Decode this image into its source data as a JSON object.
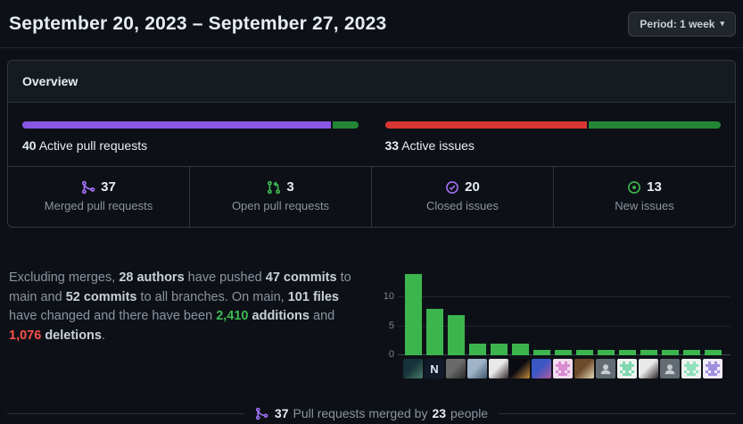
{
  "header": {
    "title": "September 20, 2023 – September 27, 2023",
    "period_button": {
      "label": "Period: 1 week",
      "caret": "▾"
    }
  },
  "overview": {
    "title": "Overview",
    "meters": [
      {
        "name": "active-pull-requests",
        "count": "40",
        "label": "Active pull requests",
        "segments": [
          {
            "color": "#8957e5",
            "pct": 92.5
          },
          {
            "color": "#238636",
            "pct": 7.5
          }
        ]
      },
      {
        "name": "active-issues",
        "count": "33",
        "label": "Active issues",
        "segments": [
          {
            "color": "#da3633",
            "pct": 60.6
          },
          {
            "color": "#238636",
            "pct": 39.4
          }
        ]
      }
    ],
    "stats": [
      {
        "icon": "git-merge-icon",
        "icon_color": "#a371f7",
        "count": "37",
        "label": "Merged pull requests"
      },
      {
        "icon": "git-pull-request-icon",
        "icon_color": "#3fb950",
        "count": "3",
        "label": "Open pull requests"
      },
      {
        "icon": "issue-closed-icon",
        "icon_color": "#a371f7",
        "count": "20",
        "label": "Closed issues"
      },
      {
        "icon": "issue-opened-icon",
        "icon_color": "#3fb950",
        "count": "13",
        "label": "New issues"
      }
    ]
  },
  "summary": {
    "segments": [
      {
        "text": "Excluding merges, ",
        "style": "normal"
      },
      {
        "text": "28 authors",
        "style": "bold"
      },
      {
        "text": " have pushed ",
        "style": "normal"
      },
      {
        "text": "47 commits",
        "style": "bold"
      },
      {
        "text": " to main and ",
        "style": "normal"
      },
      {
        "text": "52 commits",
        "style": "bold"
      },
      {
        "text": " to all branches. On main, ",
        "style": "normal"
      },
      {
        "text": "101 files",
        "style": "bold"
      },
      {
        "text": " have changed and there have been ",
        "style": "normal"
      },
      {
        "text": "2,410",
        "style": "additions"
      },
      {
        "text": " ",
        "style": "normal"
      },
      {
        "text": "additions",
        "style": "bold"
      },
      {
        "text": " and ",
        "style": "normal"
      },
      {
        "text": "1,076",
        "style": "deletions"
      },
      {
        "text": " ",
        "style": "normal"
      },
      {
        "text": "deletions",
        "style": "bold"
      },
      {
        "text": ".",
        "style": "normal"
      }
    ],
    "additions_color": "#3fb950",
    "deletions_color": "#f85149"
  },
  "chart_data": {
    "type": "bar",
    "values": [
      14,
      8,
      7,
      2,
      2,
      2,
      1,
      1,
      1,
      1,
      1,
      1,
      1,
      1,
      1
    ],
    "bar_color": "#3cb54e",
    "yticks": [
      0,
      5,
      10
    ],
    "ylim": [
      0,
      15
    ],
    "grid": true,
    "legend": false,
    "x_axis": {
      "type": "avatars",
      "count": 15
    },
    "xlabel": "",
    "ylabel": ""
  },
  "avatars": [
    {
      "type": "photo",
      "c1": "#16323a",
      "c2": "#4a7f6a"
    },
    {
      "type": "glyph",
      "c1": "#101a2b",
      "c2": "#dfe6ee",
      "glyph": "N"
    },
    {
      "type": "photo",
      "c1": "#6a6a6a",
      "c2": "#2b2b2b"
    },
    {
      "type": "photo",
      "c1": "#9fb4c8",
      "c2": "#41576b"
    },
    {
      "type": "photo",
      "c1": "#e8e8e8",
      "c2": "#33262b"
    },
    {
      "type": "photo",
      "c1": "#0a0a12",
      "c2": "#c98a3a"
    },
    {
      "type": "photo",
      "c1": "#3a57c4",
      "c2": "#b05a9e"
    },
    {
      "type": "identicon",
      "c1": "#f2dcee",
      "c2": "#d98ad0"
    },
    {
      "type": "photo",
      "c1": "#6b4a2a",
      "c2": "#e8d8b8"
    },
    {
      "type": "octocat",
      "c1": "#636b73",
      "c2": "#c8cdd2"
    },
    {
      "type": "identicon",
      "c1": "#eef3f0",
      "c2": "#7fd8b0"
    },
    {
      "type": "photo",
      "c1": "#e9e9e9",
      "c2": "#2a2326"
    },
    {
      "type": "octocat",
      "c1": "#636b73",
      "c2": "#c8cdd2"
    },
    {
      "type": "identicon",
      "c1": "#eef3f0",
      "c2": "#8fe0bc"
    },
    {
      "type": "identicon",
      "c1": "#efeaf6",
      "c2": "#9f8fdf"
    }
  ],
  "footer": {
    "icon_color": "#a371f7",
    "segments": [
      {
        "text": "37",
        "style": "bold"
      },
      {
        "text": " Pull requests merged by ",
        "style": "normal"
      },
      {
        "text": "23",
        "style": "bold"
      },
      {
        "text": " people",
        "style": "normal"
      }
    ]
  }
}
